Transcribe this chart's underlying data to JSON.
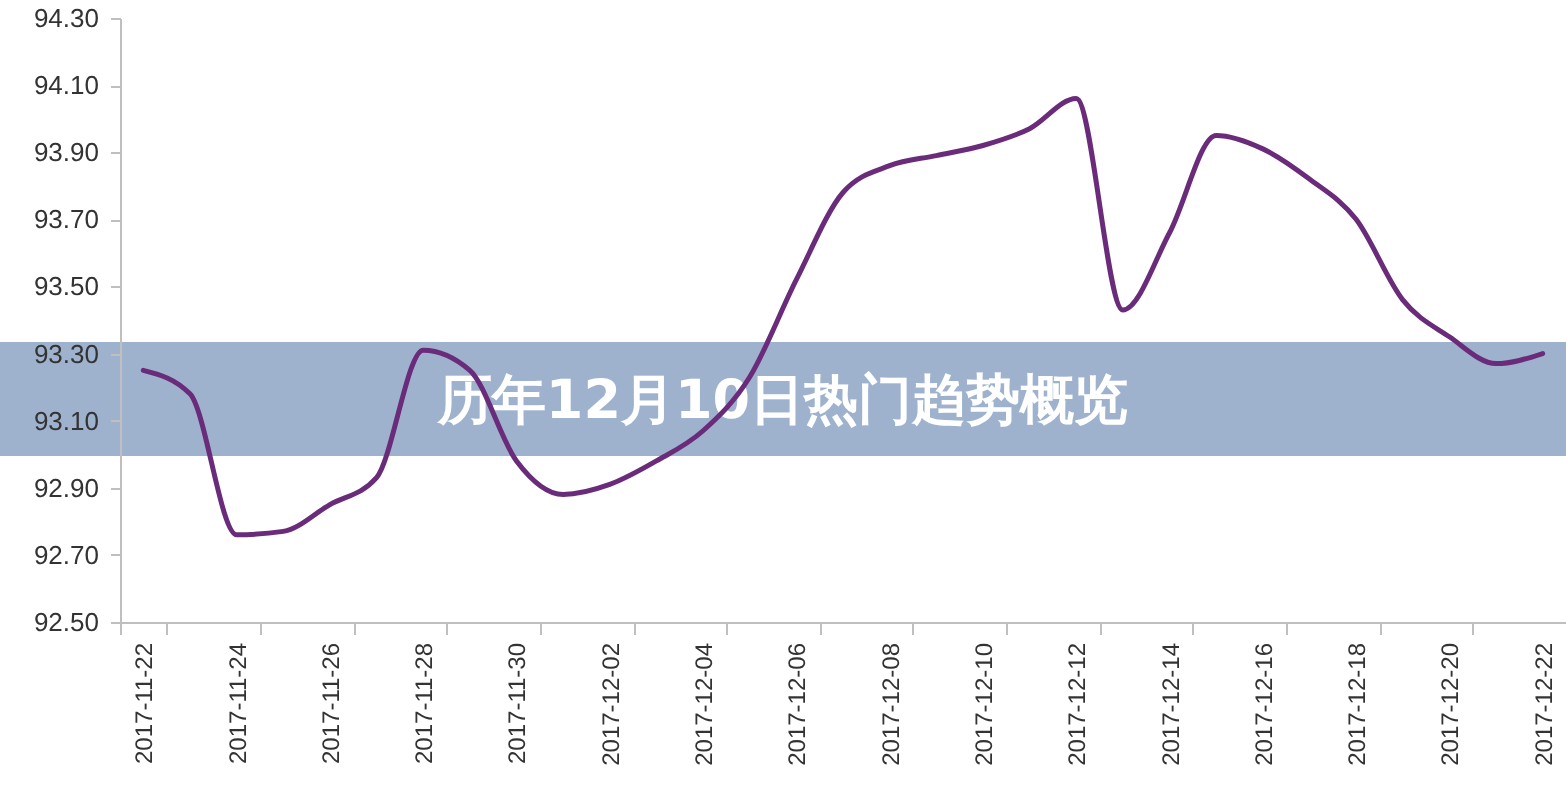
{
  "chart_data": {
    "type": "line",
    "title": "历年12月10日热门趋势概览",
    "categories": [
      "2017-11-22",
      null,
      "2017-11-24",
      null,
      "2017-11-26",
      null,
      "2017-11-28",
      null,
      "2017-11-30",
      null,
      "2017-12-02",
      null,
      "2017-12-04",
      null,
      "2017-12-06",
      null,
      "2017-12-08",
      null,
      "2017-12-10",
      null,
      "2017-12-12",
      null,
      "2017-12-14",
      null,
      "2017-12-16",
      null,
      "2017-12-18",
      null,
      "2017-12-20",
      null,
      "2017-12-22"
    ],
    "series": [
      {
        "color": "#6a2c7a",
        "values": [
          93.25,
          93.18,
          92.76,
          92.77,
          92.85,
          92.93,
          93.31,
          93.25,
          92.98,
          92.88,
          92.91,
          92.98,
          93.07,
          93.23,
          93.52,
          93.78,
          93.86,
          93.89,
          93.92,
          93.97,
          94.06,
          93.43,
          93.66,
          93.95,
          93.91,
          93.82,
          93.7,
          93.46,
          93.35,
          93.27,
          93.3
        ]
      }
    ],
    "ylim": [
      92.5,
      94.3
    ],
    "yticks": [
      {
        "value": 92.5,
        "label": "92.50"
      },
      {
        "value": 92.7,
        "label": "92.70"
      },
      {
        "value": 92.9,
        "label": "92.90"
      },
      {
        "value": 93.1,
        "label": "93.10"
      },
      {
        "value": 93.3,
        "label": "93.30"
      },
      {
        "value": 93.5,
        "label": "93.50"
      },
      {
        "value": 93.7,
        "label": "93.70"
      },
      {
        "value": 93.9,
        "label": "93.90"
      },
      {
        "value": 94.1,
        "label": "94.10"
      },
      {
        "value": 94.3,
        "label": "94.30"
      }
    ],
    "grid": false,
    "marker": "none",
    "line_style": "solid"
  }
}
